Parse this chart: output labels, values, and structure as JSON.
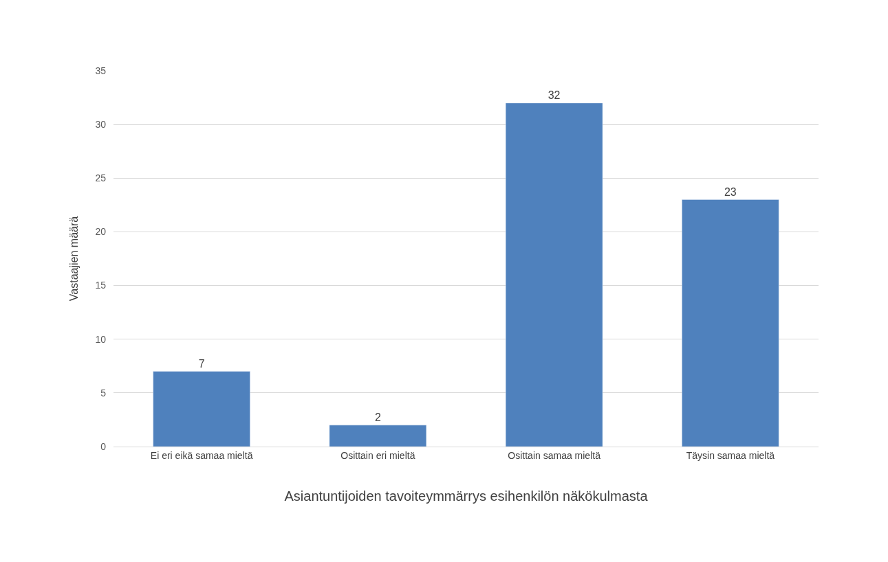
{
  "chart_data": {
    "type": "bar",
    "categories": [
      "Ei eri eikä samaa mieltä",
      "Osittain eri mieltä",
      "Osittain samaa mieltä",
      "Täysin samaa mieltä"
    ],
    "values": [
      7,
      2,
      32,
      23
    ],
    "color": "#4f81bd",
    "xlabel": "Asiantuntijoiden tavoiteymmärrys esihenkilön näkökulmasta",
    "ylabel": "Vastaajien määrä",
    "ylim": [
      0,
      35
    ],
    "yticks": [
      0,
      5,
      10,
      15,
      20,
      25,
      30,
      35
    ],
    "grid": "y",
    "data_labels": true,
    "legend": false
  }
}
